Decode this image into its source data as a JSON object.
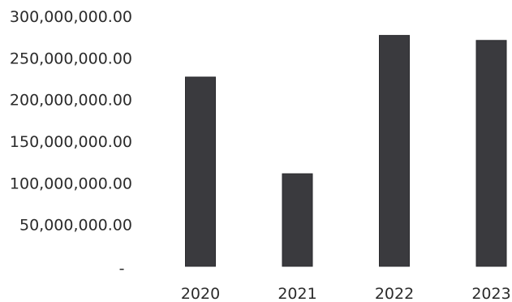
{
  "chart_data": {
    "type": "bar",
    "title": "",
    "xlabel": "",
    "ylabel": "",
    "categories": [
      "2020",
      "2021",
      "2022",
      "2023"
    ],
    "values": [
      227000000,
      111000000,
      277000000,
      271000000
    ],
    "ylim": [
      0,
      300000000
    ],
    "yticks": [
      0,
      50000000,
      100000000,
      150000000,
      200000000,
      250000000,
      300000000
    ],
    "ytick_labels": [
      "-",
      "50,000,000.00",
      "100,000,000.00",
      "150,000,000.00",
      "200,000,000.00",
      "250,000,000.00",
      "300,000,000.00"
    ],
    "grid": false,
    "legend": "none",
    "bar_color": "#3a3a3e"
  }
}
